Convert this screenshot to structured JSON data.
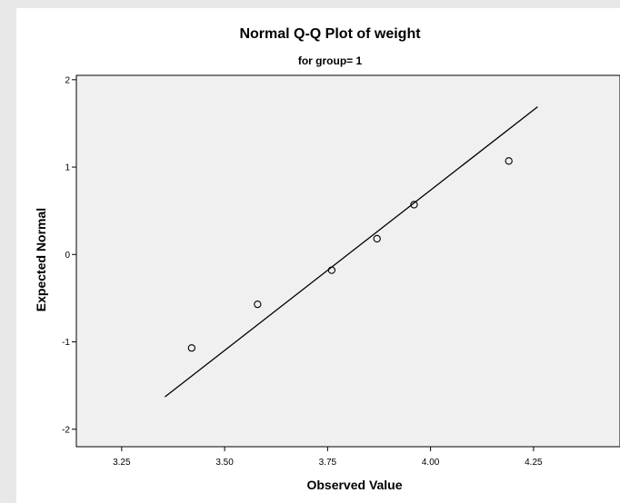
{
  "chart_data": {
    "type": "scatter",
    "title": "Normal Q-Q Plot of weight",
    "subtitle": "for group= 1",
    "xlabel": "Observed Value",
    "ylabel": "Expected Normal",
    "xlim": [
      3.14,
      4.46
    ],
    "ylim": [
      -2.2,
      2.05
    ],
    "x_ticks": [
      3.25,
      3.5,
      3.75,
      4.0,
      4.25
    ],
    "x_tick_labels": [
      "3.25",
      "3.50",
      "3.75",
      "4.00",
      "4.25"
    ],
    "y_ticks": [
      -2,
      -1,
      0,
      1,
      2
    ],
    "y_tick_labels": [
      "-2",
      "-1",
      "0",
      "1",
      "2"
    ],
    "points": [
      {
        "x": 3.42,
        "y": -1.07
      },
      {
        "x": 3.58,
        "y": -0.57
      },
      {
        "x": 3.76,
        "y": -0.18
      },
      {
        "x": 3.87,
        "y": 0.18
      },
      {
        "x": 3.96,
        "y": 0.57
      },
      {
        "x": 4.19,
        "y": 1.07
      }
    ],
    "reference_line": [
      {
        "x": 3.355,
        "y": -1.63
      },
      {
        "x": 4.26,
        "y": 1.69
      }
    ],
    "grid": false,
    "legend": "none",
    "colors": {
      "plot_background": "#f0f0f0",
      "marker": "#000000",
      "line": "#000000"
    }
  }
}
